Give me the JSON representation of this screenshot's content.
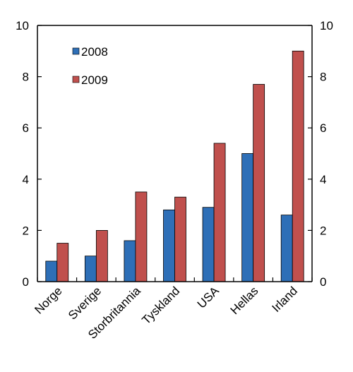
{
  "chart_data": {
    "type": "bar",
    "title": "",
    "xlabel": "",
    "ylabel": "",
    "categories": [
      "Norge",
      "Sverige",
      "Storbritannia",
      "Tyskland",
      "USA",
      "Hellas",
      "Irland"
    ],
    "series": [
      {
        "name": "2008",
        "color": "#2E6FB7",
        "values": [
          0.8,
          1.0,
          1.6,
          2.8,
          2.9,
          5.0,
          2.6
        ]
      },
      {
        "name": "2009",
        "color": "#C0504D",
        "values": [
          1.5,
          2.0,
          3.5,
          3.3,
          5.4,
          7.7,
          9.0
        ]
      }
    ],
    "ylim": [
      0,
      10
    ],
    "yticks": [
      0,
      2,
      4,
      6,
      8,
      10
    ],
    "secondary_y_axis": true,
    "grid": false,
    "legend_position": "top-left"
  }
}
